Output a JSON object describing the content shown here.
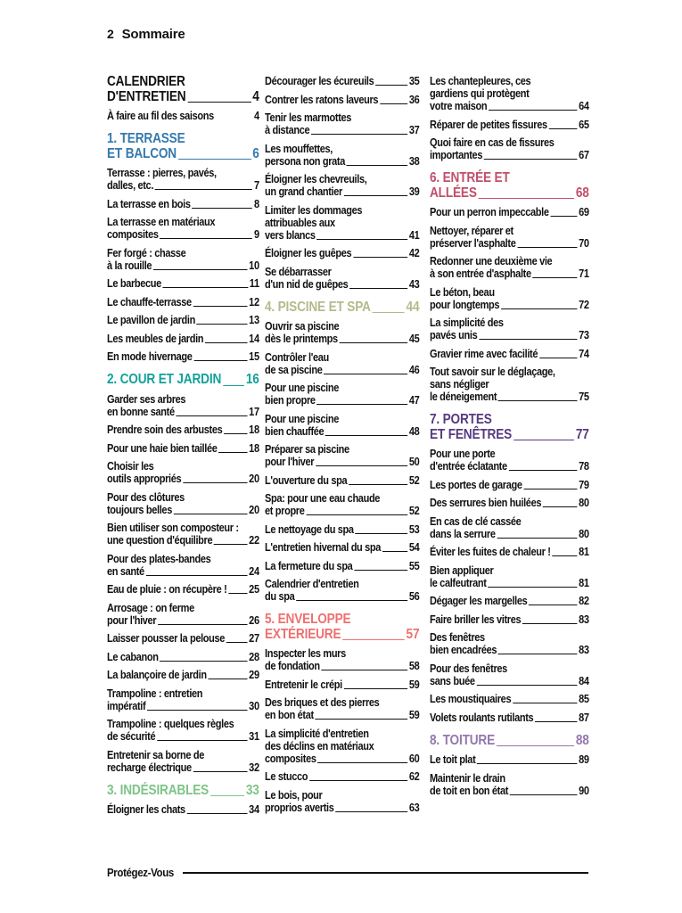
{
  "page": {
    "number": "2",
    "title": "Sommaire"
  },
  "footer": {
    "logo": "Protégez-Vous"
  },
  "section_colors": {
    "black": "#111111",
    "blue": "#3579ad",
    "teal": "#12a19a",
    "green": "#7ec487",
    "olive": "#b6ba8a",
    "salmon": "#ee7070",
    "rose": "#c14f6c",
    "purple": "#57397f",
    "mauve": "#9377ad"
  },
  "columns": [
    {
      "items": [
        {
          "type": "section",
          "color": "black",
          "lines": [
            "CALENDRIER",
            "D'ENTRETIEN"
          ],
          "page": "4"
        },
        {
          "type": "entry",
          "lines": [
            "À faire au fil des saisons"
          ],
          "page": "4",
          "leader": false
        },
        {
          "type": "section",
          "color": "blue",
          "lines": [
            "1. TERRASSE",
            "ET BALCON"
          ],
          "page": "6"
        },
        {
          "type": "entry",
          "lines": [
            "Terrasse : pierres, pavés,",
            "dalles, etc."
          ],
          "page": "7"
        },
        {
          "type": "entry",
          "lines": [
            "La terrasse en bois"
          ],
          "page": "8"
        },
        {
          "type": "entry",
          "lines": [
            "La terrasse en matériaux",
            "composites"
          ],
          "page": "9"
        },
        {
          "type": "entry",
          "lines": [
            "Fer forgé : chasse",
            "à la rouille"
          ],
          "page": "10"
        },
        {
          "type": "entry",
          "lines": [
            "Le barbecue"
          ],
          "page": "11"
        },
        {
          "type": "entry",
          "lines": [
            "Le chauffe-terrasse"
          ],
          "page": "12"
        },
        {
          "type": "entry",
          "lines": [
            "Le pavillon de jardin"
          ],
          "page": "13"
        },
        {
          "type": "entry",
          "lines": [
            "Les meubles de jardin"
          ],
          "page": "14"
        },
        {
          "type": "entry",
          "lines": [
            "En mode hivernage"
          ],
          "page": "15"
        },
        {
          "type": "section",
          "color": "teal",
          "lines": [
            "2. COUR ET JARDIN"
          ],
          "page": "16"
        },
        {
          "type": "entry",
          "lines": [
            "Garder ses arbres",
            "en bonne santé"
          ],
          "page": "17"
        },
        {
          "type": "entry",
          "lines": [
            "Prendre soin des arbustes"
          ],
          "page": "18"
        },
        {
          "type": "entry",
          "lines": [
            "Pour une haie bien taillée"
          ],
          "page": "18"
        },
        {
          "type": "entry",
          "lines": [
            "Choisir les",
            "outils appropriés"
          ],
          "page": "20"
        },
        {
          "type": "entry",
          "lines": [
            "Pour des clôtures",
            "toujours belles"
          ],
          "page": "20"
        },
        {
          "type": "entry",
          "lines": [
            "Bien utiliser son composteur :",
            "une question d'équilibre"
          ],
          "page": "22"
        },
        {
          "type": "entry",
          "lines": [
            "Pour des plates-bandes",
            "en santé"
          ],
          "page": "24"
        },
        {
          "type": "entry",
          "lines": [
            "Eau de pluie : on récupère !"
          ],
          "page": "25"
        },
        {
          "type": "entry",
          "lines": [
            "Arrosage : on ferme",
            "pour l'hiver"
          ],
          "page": "26"
        },
        {
          "type": "entry",
          "lines": [
            "Laisser pousser la pelouse"
          ],
          "page": "27"
        },
        {
          "type": "entry",
          "lines": [
            "Le cabanon"
          ],
          "page": "28"
        },
        {
          "type": "entry",
          "lines": [
            "La balançoire de jardin"
          ],
          "page": "29"
        },
        {
          "type": "entry",
          "lines": [
            "Trampoline : entretien",
            "impératif"
          ],
          "page": "30"
        },
        {
          "type": "entry",
          "lines": [
            "Trampoline : quelques règles",
            "de sécurité"
          ],
          "page": "31"
        },
        {
          "type": "entry",
          "lines": [
            "Entretenir sa borne de",
            "recharge électrique"
          ],
          "page": "32"
        },
        {
          "type": "section",
          "color": "green",
          "lines": [
            "3. INDÉSIRABLES"
          ],
          "page": "33"
        },
        {
          "type": "entry",
          "lines": [
            "Éloigner les chats"
          ],
          "page": "34"
        }
      ]
    },
    {
      "items": [
        {
          "type": "entry",
          "lines": [
            "Décourager les écureuils"
          ],
          "page": "35"
        },
        {
          "type": "entry",
          "lines": [
            "Contrer les ratons laveurs"
          ],
          "page": "36"
        },
        {
          "type": "entry",
          "lines": [
            "Tenir les marmottes",
            "à distance"
          ],
          "page": "37"
        },
        {
          "type": "entry",
          "lines": [
            "Les mouffettes,",
            "persona non grata"
          ],
          "page": "38"
        },
        {
          "type": "entry",
          "lines": [
            "Éloigner les chevreuils,",
            "un grand chantier"
          ],
          "page": "39"
        },
        {
          "type": "entry",
          "lines": [
            "Limiter les dommages",
            "attribuables aux",
            "vers blancs"
          ],
          "page": "41"
        },
        {
          "type": "entry",
          "lines": [
            "Éloigner les guêpes"
          ],
          "page": "42"
        },
        {
          "type": "entry",
          "lines": [
            "Se débarrasser",
            "d'un nid de guêpes"
          ],
          "page": "43"
        },
        {
          "type": "section",
          "color": "olive",
          "lines": [
            "4. PISCINE ET SPA"
          ],
          "page": "44"
        },
        {
          "type": "entry",
          "lines": [
            "Ouvrir sa piscine",
            "dès le printemps"
          ],
          "page": "45"
        },
        {
          "type": "entry",
          "lines": [
            "Contrôler l'eau",
            "de sa piscine"
          ],
          "page": "46"
        },
        {
          "type": "entry",
          "lines": [
            "Pour une piscine",
            "bien propre"
          ],
          "page": "47"
        },
        {
          "type": "entry",
          "lines": [
            "Pour une piscine",
            "bien chauffée"
          ],
          "page": "48"
        },
        {
          "type": "entry",
          "lines": [
            "Préparer sa piscine",
            "pour l'hiver"
          ],
          "page": "50"
        },
        {
          "type": "entry",
          "lines": [
            "L'ouverture du spa"
          ],
          "page": "52"
        },
        {
          "type": "entry",
          "lines": [
            "Spa: pour une eau chaude",
            "et propre"
          ],
          "page": "52"
        },
        {
          "type": "entry",
          "lines": [
            "Le nettoyage du spa"
          ],
          "page": "53"
        },
        {
          "type": "entry",
          "lines": [
            "L'entretien hivernal du spa"
          ],
          "page": "54"
        },
        {
          "type": "entry",
          "lines": [
            "La fermeture du spa"
          ],
          "page": "55"
        },
        {
          "type": "entry",
          "lines": [
            "Calendrier d'entretien",
            "du spa"
          ],
          "page": "56"
        },
        {
          "type": "section",
          "color": "salmon",
          "lines": [
            "5. ENVELOPPE",
            "EXTÉRIEURE"
          ],
          "page": "57"
        },
        {
          "type": "entry",
          "lines": [
            "Inspecter les murs",
            "de fondation"
          ],
          "page": "58"
        },
        {
          "type": "entry",
          "lines": [
            "Entretenir le crépi"
          ],
          "page": "59"
        },
        {
          "type": "entry",
          "lines": [
            "Des briques et des pierres",
            "en bon état"
          ],
          "page": "59"
        },
        {
          "type": "entry",
          "lines": [
            "La simplicité d'entretien",
            "des déclins en matériaux",
            "composites"
          ],
          "page": "60"
        },
        {
          "type": "entry",
          "lines": [
            "Le stucco"
          ],
          "page": "62"
        },
        {
          "type": "entry",
          "lines": [
            "Le bois, pour",
            "proprios avertis"
          ],
          "page": "63"
        }
      ]
    },
    {
      "items": [
        {
          "type": "entry",
          "lines": [
            "Les chantepleures, ces",
            "gardiens qui protègent",
            "votre maison"
          ],
          "page": "64"
        },
        {
          "type": "entry",
          "lines": [
            "Réparer de petites fissures"
          ],
          "page": "65"
        },
        {
          "type": "entry",
          "lines": [
            "Quoi faire en cas de fissures",
            "importantes"
          ],
          "page": "67"
        },
        {
          "type": "section",
          "color": "rose",
          "lines": [
            "6. ENTRÉE ET",
            "ALLÉES"
          ],
          "page": "68"
        },
        {
          "type": "entry",
          "lines": [
            "Pour un perron impeccable"
          ],
          "page": "69"
        },
        {
          "type": "entry",
          "lines": [
            "Nettoyer, réparer et",
            "préserver l'asphalte"
          ],
          "page": "70"
        },
        {
          "type": "entry",
          "lines": [
            "Redonner une deuxième vie",
            "à son entrée d'asphalte"
          ],
          "page": "71"
        },
        {
          "type": "entry",
          "lines": [
            "Le béton, beau",
            "pour longtemps"
          ],
          "page": "72"
        },
        {
          "type": "entry",
          "lines": [
            "La simplicité des",
            "pavés unis"
          ],
          "page": "73"
        },
        {
          "type": "entry",
          "lines": [
            "Gravier rime avec facilité"
          ],
          "page": "74"
        },
        {
          "type": "entry",
          "lines": [
            "Tout savoir sur le déglaçage,",
            "sans négliger",
            "le déneigement"
          ],
          "page": "75"
        },
        {
          "type": "section",
          "color": "purple",
          "lines": [
            "7. PORTES",
            "ET FENÊTRES"
          ],
          "page": "77"
        },
        {
          "type": "entry",
          "lines": [
            "Pour une porte",
            "d'entrée éclatante"
          ],
          "page": "78"
        },
        {
          "type": "entry",
          "lines": [
            "Les portes de garage"
          ],
          "page": "79"
        },
        {
          "type": "entry",
          "lines": [
            "Des serrures bien huilées"
          ],
          "page": "80"
        },
        {
          "type": "entry",
          "lines": [
            "En cas de clé cassée",
            "dans la serrure"
          ],
          "page": "80"
        },
        {
          "type": "entry",
          "lines": [
            "Éviter les fuites de chaleur !"
          ],
          "page": "81"
        },
        {
          "type": "entry",
          "lines": [
            "Bien appliquer",
            "le calfeutrant"
          ],
          "page": "81"
        },
        {
          "type": "entry",
          "lines": [
            "Dégager les margelles"
          ],
          "page": "82"
        },
        {
          "type": "entry",
          "lines": [
            "Faire briller les vitres"
          ],
          "page": "83"
        },
        {
          "type": "entry",
          "lines": [
            "Des fenêtres",
            "bien encadrées"
          ],
          "page": "83"
        },
        {
          "type": "entry",
          "lines": [
            "Pour des fenêtres",
            "sans buée"
          ],
          "page": "84"
        },
        {
          "type": "entry",
          "lines": [
            "Les moustiquaires"
          ],
          "page": "85"
        },
        {
          "type": "entry",
          "lines": [
            "Volets roulants rutilants"
          ],
          "page": "87"
        },
        {
          "type": "section",
          "color": "mauve",
          "lines": [
            "8. TOITURE"
          ],
          "page": "88"
        },
        {
          "type": "entry",
          "lines": [
            "Le toit plat"
          ],
          "page": "89"
        },
        {
          "type": "entry",
          "lines": [
            "Maintenir le drain",
            "de toit en bon état"
          ],
          "page": "90"
        }
      ]
    }
  ]
}
